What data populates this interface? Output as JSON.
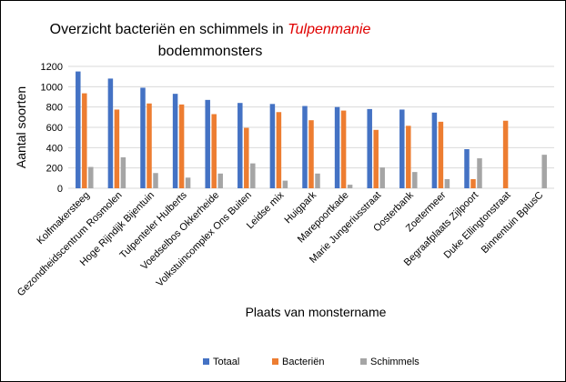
{
  "chart_data": {
    "type": "bar",
    "title_main": "Overzicht bacteriën en schimmels in ",
    "title_accent": "Tulpenmanie",
    "title_line2": "bodemmonsters",
    "xlabel": "Plaats van monstername",
    "ylabel": "Aantal soorten",
    "ylim": [
      0,
      1200
    ],
    "yticks": [
      0,
      200,
      400,
      600,
      800,
      1000,
      1200
    ],
    "grid": true,
    "legend_position": "bottom",
    "categories": [
      "Kolfmakersteeg",
      "Gezondheidscentrum Rosmolen",
      "Hoge Rijndijk Bijentuin",
      "Tulpenteler Hulberts",
      "Voedselbos Okkerheide",
      "Volkstuincomplex Ons Buiten",
      "Leidse mix",
      "Huigpark",
      "Marepoortkade",
      "Marie Jungeriusstraat",
      "Oosterbank",
      "Zoetermeer",
      "Begraafplaats Zijlpoort",
      "Duke Ellingtonstraat",
      "Binnentuin BplusC"
    ],
    "series": [
      {
        "name": "Totaal",
        "color": "#4472C4",
        "values": [
          1150,
          1080,
          990,
          930,
          870,
          840,
          830,
          810,
          800,
          780,
          775,
          745,
          385,
          null,
          null
        ]
      },
      {
        "name": "Bacteriën",
        "color": "#ED7D31",
        "values": [
          935,
          775,
          835,
          825,
          730,
          595,
          750,
          670,
          765,
          575,
          615,
          655,
          90,
          665,
          null
        ]
      },
      {
        "name": "Schimmels",
        "color": "#A5A5A5",
        "values": [
          210,
          305,
          150,
          105,
          145,
          245,
          75,
          145,
          35,
          205,
          160,
          90,
          295,
          null,
          330
        ]
      }
    ]
  }
}
